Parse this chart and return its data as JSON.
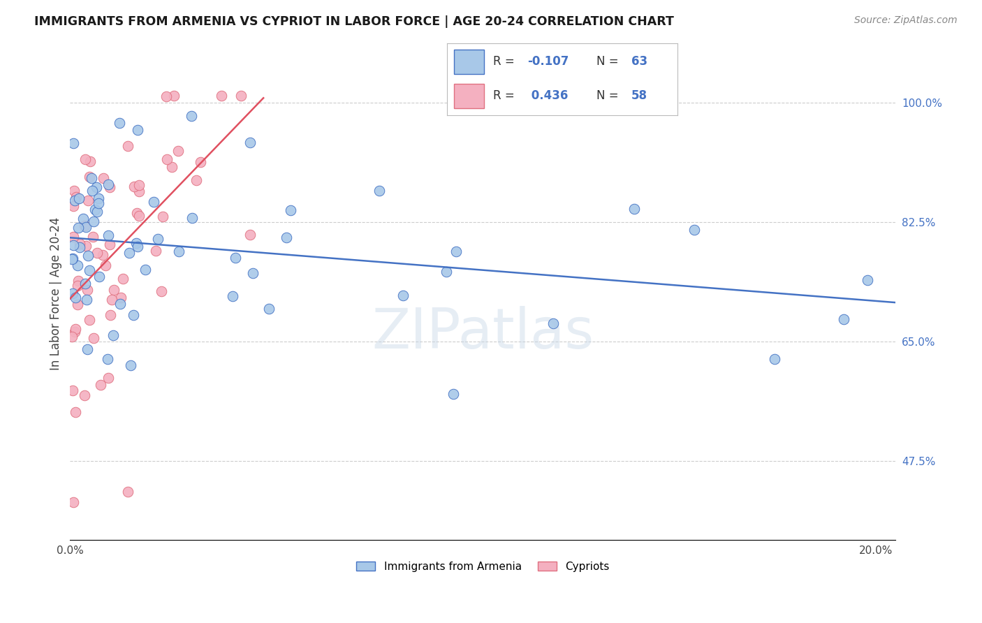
{
  "title": "IMMIGRANTS FROM ARMENIA VS CYPRIOT IN LABOR FORCE | AGE 20-24 CORRELATION CHART",
  "source_text": "Source: ZipAtlas.com",
  "ylabel": "In Labor Force | Age 20-24",
  "xlim_min": 0.0,
  "xlim_max": 0.205,
  "ylim_min": 0.36,
  "ylim_max": 1.08,
  "yticks": [
    0.475,
    0.65,
    0.825,
    1.0
  ],
  "ytick_labels": [
    "47.5%",
    "65.0%",
    "82.5%",
    "100.0%"
  ],
  "xtick_positions": [
    0.0,
    0.04,
    0.08,
    0.12,
    0.16,
    0.2
  ],
  "xtick_labels": [
    "0.0%",
    "",
    "",
    "",
    "",
    "20.0%"
  ],
  "color_armenia_face": "#a8c8e8",
  "color_armenia_edge": "#4472c4",
  "color_cypriot_face": "#f4b0c0",
  "color_cypriot_edge": "#e07080",
  "color_line_armenia": "#4472c4",
  "color_line_cypriot": "#e05060",
  "color_ytick_labels": "#4472c4",
  "watermark_text": "ZIPatlas",
  "r_armenia": -0.107,
  "n_armenia": 63,
  "r_cypriot": 0.436,
  "n_cypriot": 58,
  "arm_seed": 77,
  "cyp_seed": 44,
  "legend_r1_text": "R = −0.107",
  "legend_n1_text": "N = 63",
  "legend_r2_text": "R =  0.436",
  "legend_n2_text": "N = 58"
}
